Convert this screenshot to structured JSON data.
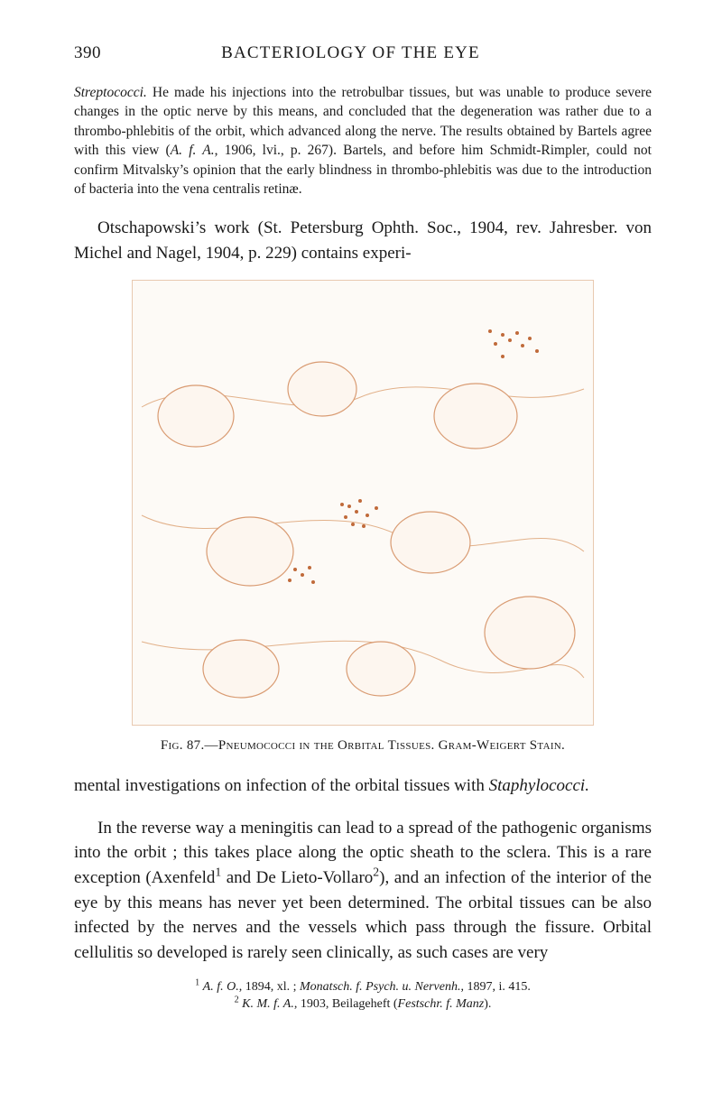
{
  "page_number": "390",
  "running_title": "BACTERIOLOGY OF THE EYE",
  "para_streptococci_html": "<span class=\"italic\">Streptococci.</span> He made his injections into the retrobulbar tissues, but was unable to produce severe changes in the optic nerve by this means, and concluded that the degeneration was rather due to a thrombo-phlebitis of the orbit, which advanced along the nerve. The results obtained by Bartels agree with this view (<span class=\"italic\">A. f. A.</span>, 1906, lvi., p. 267). Bartels, and before him Schmidt-Rimpler, could not confirm Mitvalsky’s opinion that the early blindness in thrombo-phlebitis was due to the introduction of bacteria into the vena centralis retinæ.",
  "para_otschapowski": "Otschapowski’s work (St. Petersburg Ophth. Soc., 1904, rev. Jahresber. von Michel and Nagel, 1904, p. 229) contains experi-",
  "figure": {
    "number": "87",
    "caption_html": "<span class=\"sc\">Fig.</span> 87.—<span class=\"sc\">Pneumococci in the Orbital Tissues.</span> <span class=\"sc\">Gram-Weigert Stain.</span>",
    "tint": "#d99b72",
    "bg": "#fdfaf6"
  },
  "para_mental_html": "mental investigations on infection of the orbital tissues with <span class=\"italic\">Staphylococci.</span>",
  "para_reverse_html": "In the reverse way a meningitis can lead to a spread of the patho­genic organisms into the orbit ; this takes place along the optic sheath to the sclera. This is a rare exception (Axenfeld<sup>1</sup> and De Lieto-Vollaro<sup>2</sup>), and an infection of the interior of the eye by this means has never yet been determined. The orbital tissues can be also infected by the nerves and the vessels which pass through the fissure. Orbital cellulitis so developed is rarely seen clinically, as such cases are very",
  "footnotes": [
    "<sup>1</sup> <span class=\"italic\">A. f. O.</span>, 1894, xl. ; <span class=\"italic\">Monatsch. f. Psych. u. Nervenh.</span>, 1897, i. 415.",
    "<sup>2</sup> <span class=\"italic\">K. M. f. A.</span>, 1903, Beilageheft (<span class=\"italic\">Festschr. f. Manz</span>)."
  ]
}
